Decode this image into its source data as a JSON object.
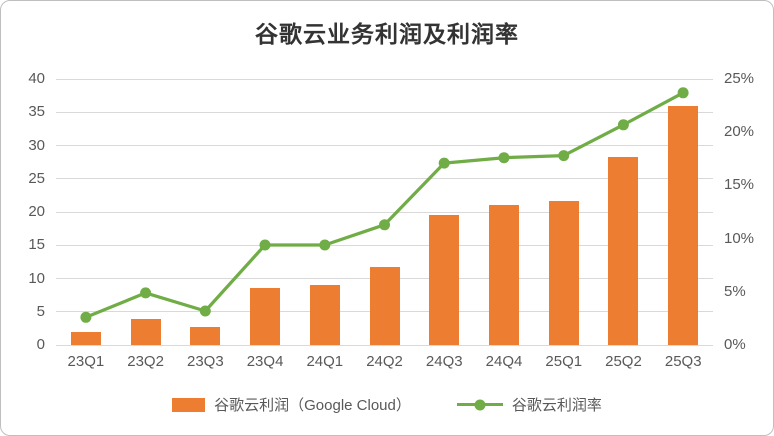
{
  "chart_data": {
    "type": "combo",
    "title": "谷歌云业务利润及利润率",
    "categories": [
      "23Q1",
      "23Q2",
      "23Q3",
      "23Q4",
      "24Q1",
      "24Q2",
      "24Q3",
      "24Q4",
      "25Q1",
      "25Q2",
      "25Q3"
    ],
    "series": [
      {
        "name": "谷歌云利润（Google Cloud）",
        "type": "bar",
        "axis": "left",
        "color": "#ED7D31",
        "values": [
          1.9,
          3.9,
          2.7,
          8.6,
          9.0,
          11.7,
          19.5,
          21.0,
          21.7,
          28.3,
          35.9
        ]
      },
      {
        "name": "谷歌云利润率",
        "type": "line",
        "axis": "right",
        "color": "#70AD47",
        "values": [
          2.6,
          4.9,
          3.2,
          9.4,
          9.4,
          11.3,
          17.1,
          17.6,
          17.8,
          20.7,
          23.7
        ]
      }
    ],
    "left_axis": {
      "min": 0,
      "max": 40,
      "tick_values": [
        0,
        5,
        10,
        15,
        20,
        25,
        30,
        35,
        40
      ],
      "tick_labels": [
        "0",
        "5",
        "10",
        "15",
        "20",
        "25",
        "30",
        "35",
        "40"
      ]
    },
    "right_axis": {
      "min": 0,
      "max": 25,
      "tick_values": [
        0,
        5,
        10,
        15,
        20,
        25
      ],
      "tick_labels": [
        "0%",
        "5%",
        "10%",
        "15%",
        "20%",
        "25%"
      ]
    },
    "grid": true,
    "grid_color": "#D9D9D9",
    "axis_text_color": "#595959",
    "legend_position": "bottom"
  }
}
